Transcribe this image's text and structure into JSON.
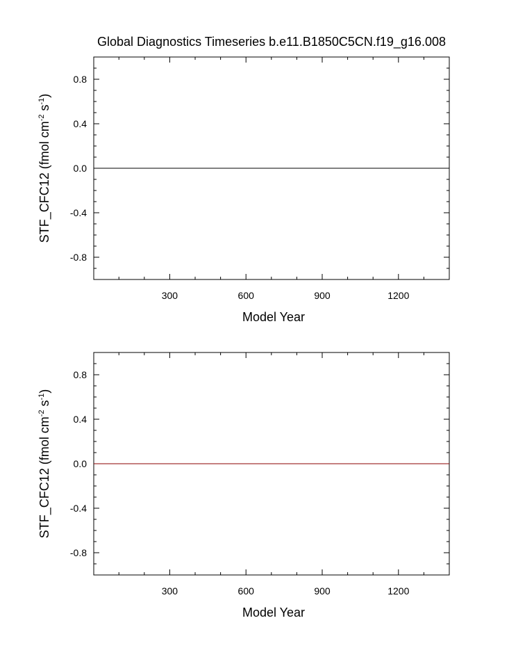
{
  "title": "Global Diagnostics Timeseries b.e11.B1850C5CN.f19_g16.008",
  "chart_data": [
    {
      "type": "line",
      "xlabel": "Model Year",
      "ylabel": "STF_CFC12 (fmol cm",
      "ylabel_sup1": "-2",
      "ylabel_mid": " s",
      "ylabel_sup2": "-1",
      "ylabel_end": ")",
      "xlim": [
        1,
        1400
      ],
      "ylim": [
        -1.0,
        1.0
      ],
      "x_ticks": [
        300,
        600,
        900,
        1200
      ],
      "x_tick_labels": [
        "300",
        "600",
        "900",
        "1200"
      ],
      "y_ticks": [
        0.8,
        0.4,
        0.0,
        -0.4,
        -0.8
      ],
      "y_tick_labels": [
        "0.8",
        "0.4",
        "0.0",
        "-0.4",
        "-0.8"
      ],
      "series": [
        {
          "color": "#000000",
          "x": [
            1,
            1400
          ],
          "y": [
            0.0,
            0.0
          ]
        }
      ]
    },
    {
      "type": "line",
      "xlabel": "Model Year",
      "ylabel": "STF_CFC12 (fmol cm",
      "ylabel_sup1": "-2",
      "ylabel_mid": " s",
      "ylabel_sup2": "-1",
      "ylabel_end": ")",
      "xlim": [
        1,
        1400
      ],
      "ylim": [
        -1.0,
        1.0
      ],
      "x_ticks": [
        300,
        600,
        900,
        1200
      ],
      "x_tick_labels": [
        "300",
        "600",
        "900",
        "1200"
      ],
      "y_ticks": [
        0.8,
        0.4,
        0.0,
        -0.4,
        -0.8
      ],
      "y_tick_labels": [
        "0.8",
        "0.4",
        "0.0",
        "-0.4",
        "-0.8"
      ],
      "series": [
        {
          "color": "#8b0000",
          "x": [
            1,
            1400
          ],
          "y": [
            0.0,
            0.0
          ]
        }
      ]
    }
  ]
}
